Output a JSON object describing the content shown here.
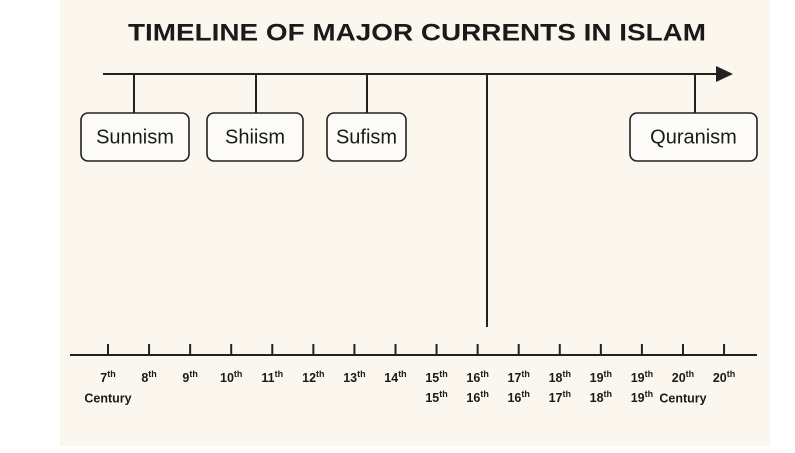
{
  "title": "TIMELINE OF MAJOR CURRENTS IN ISLAM",
  "currents": [
    {
      "label": "Sunnism"
    },
    {
      "label": "Shiism"
    },
    {
      "label": "Sufism"
    },
    {
      "label": "Quranism"
    }
  ],
  "axis": {
    "ticks": [
      {
        "label": "7th",
        "sublabel": "Century"
      },
      {
        "label": "8th"
      },
      {
        "label": "9th"
      },
      {
        "label": "10th"
      },
      {
        "label": "11th"
      },
      {
        "label": "12th"
      },
      {
        "label": "13th"
      },
      {
        "label": "14th"
      },
      {
        "label": "15th",
        "sublabel": "15th"
      },
      {
        "label": "16th",
        "sublabel": "16th"
      },
      {
        "label": "17th",
        "sublabel": "16th"
      },
      {
        "label": "18th",
        "sublabel": "17th"
      },
      {
        "label": "19th",
        "sublabel": "18th"
      },
      {
        "label": "19th",
        "sublabel": "19th"
      },
      {
        "label": "20th",
        "sublabel": "Century"
      },
      {
        "label": "20th"
      }
    ]
  }
}
